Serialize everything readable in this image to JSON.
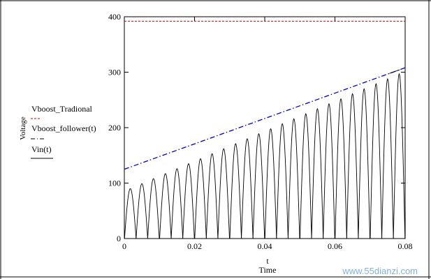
{
  "chart_data": {
    "type": "line",
    "title": "",
    "xlabel_var": "t",
    "xlabel": "Time",
    "ylabel": "Voltage",
    "xlim": [
      0,
      0.08
    ],
    "ylim": [
      0,
      400
    ],
    "x_ticks": [
      0,
      0.02,
      0.04,
      0.06,
      0.08
    ],
    "x_tick_labels": [
      "0",
      "0.02",
      "0.04",
      "0.06",
      "0.08"
    ],
    "y_ticks": [
      0,
      100,
      200,
      300,
      400
    ],
    "y_tick_labels": [
      "0",
      "100",
      "200",
      "300",
      "400"
    ],
    "grid": false,
    "legend_placement": "left",
    "series": [
      {
        "name": "Vboost_Tradional",
        "style": "dashed",
        "color": "#cc0000",
        "x": [
          0,
          0.08
        ],
        "y": [
          392,
          392
        ]
      },
      {
        "name": "Vboost_follower(t)",
        "style": "dash-dot",
        "color": "#0000cc",
        "x": [
          0,
          0.08
        ],
        "y": [
          125,
          308
        ]
      },
      {
        "name": "Vin(t)",
        "style": "solid",
        "color": "#000000",
        "signal": "rectified sine, half-period 0.0033",
        "peaks": [
          {
            "t": 0.0017,
            "v": 90
          },
          {
            "t": 0.005,
            "v": 99
          },
          {
            "t": 0.0083,
            "v": 108
          },
          {
            "t": 0.0117,
            "v": 117
          },
          {
            "t": 0.015,
            "v": 126
          },
          {
            "t": 0.0183,
            "v": 135
          },
          {
            "t": 0.0217,
            "v": 144
          },
          {
            "t": 0.025,
            "v": 153
          },
          {
            "t": 0.0283,
            "v": 162
          },
          {
            "t": 0.0317,
            "v": 171
          },
          {
            "t": 0.035,
            "v": 180
          },
          {
            "t": 0.0383,
            "v": 189
          },
          {
            "t": 0.0417,
            "v": 198
          },
          {
            "t": 0.045,
            "v": 207
          },
          {
            "t": 0.0483,
            "v": 216
          },
          {
            "t": 0.0517,
            "v": 225
          },
          {
            "t": 0.055,
            "v": 234
          },
          {
            "t": 0.0583,
            "v": 243
          },
          {
            "t": 0.0617,
            "v": 252
          },
          {
            "t": 0.065,
            "v": 261
          },
          {
            "t": 0.0683,
            "v": 270
          },
          {
            "t": 0.0717,
            "v": 279
          },
          {
            "t": 0.075,
            "v": 288
          },
          {
            "t": 0.0783,
            "v": 297
          }
        ]
      }
    ]
  },
  "watermark": "www.55dianzi.com",
  "watermark_colors": {
    "main": "#1a6fd6",
    "faint": "#c9a5b0"
  }
}
